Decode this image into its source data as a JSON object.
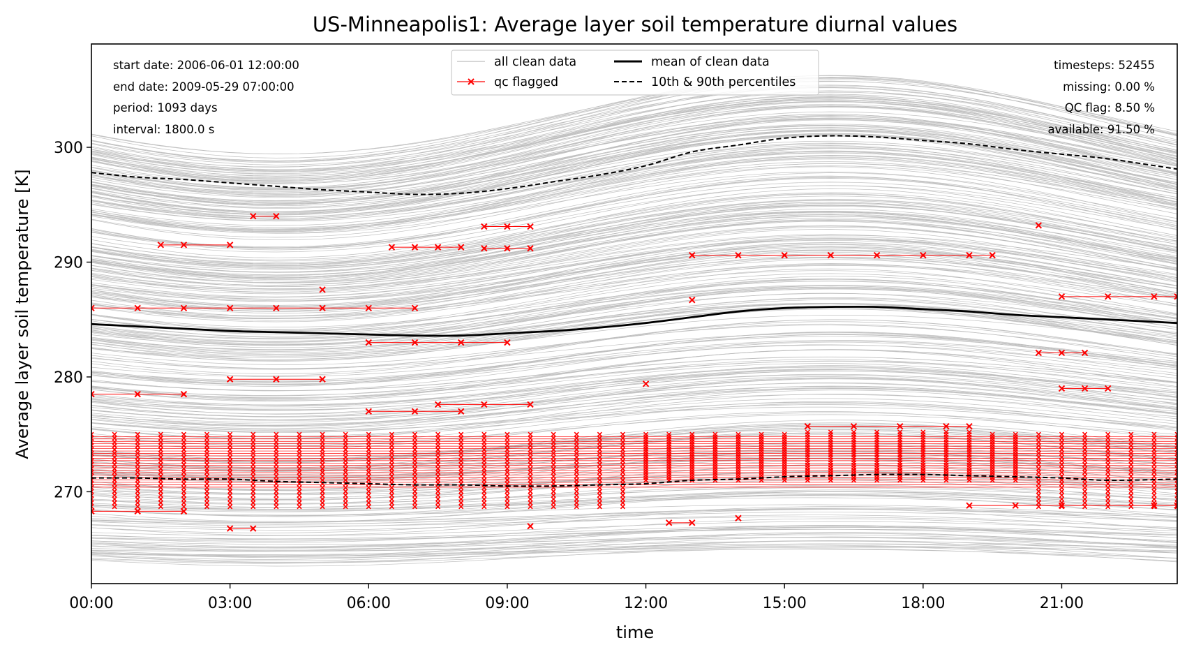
{
  "chart_data": {
    "type": "line",
    "title": "US-Minneapolis1: Average layer soil temperature diurnal values",
    "xlabel": "time",
    "ylabel": "Average layer soil temperature [K]",
    "xlim_hours": [
      0,
      23.5
    ],
    "ylim": [
      262,
      309
    ],
    "x_ticks": [
      "00:00",
      "03:00",
      "06:00",
      "09:00",
      "12:00",
      "15:00",
      "18:00",
      "21:00"
    ],
    "y_ticks": [
      270,
      280,
      290,
      300
    ],
    "grid": false,
    "legend_position": "upper center",
    "legend": [
      {
        "label": "all clean data",
        "style": "thin-grey-line"
      },
      {
        "label": "qc flagged",
        "style": "red-x-line"
      },
      {
        "label": "mean of clean data",
        "style": "thick-black-line"
      },
      {
        "label": "10th & 90th percentiles",
        "style": "dashed-black-line"
      }
    ],
    "stats_left": [
      "start date: 2006-06-01 12:00:00",
      "end date: 2009-05-29 07:00:00",
      "period: 1093 days",
      "interval: 1800.0 s"
    ],
    "stats_right": [
      "timesteps: 52455",
      "missing: 0.00 %",
      "QC flag: 8.50 %",
      "available: 91.50 %"
    ],
    "x_hours": [
      0,
      1,
      2,
      3,
      4,
      5,
      6,
      7,
      8,
      9,
      10,
      11,
      12,
      13,
      14,
      15,
      16,
      17,
      18,
      19,
      20,
      21,
      22,
      23.5
    ],
    "series": [
      {
        "name": "mean of clean data",
        "values": [
          284.6,
          284.4,
          284.2,
          284.0,
          283.9,
          283.8,
          283.7,
          283.6,
          283.6,
          283.8,
          284.0,
          284.3,
          284.7,
          285.2,
          285.7,
          286.0,
          286.1,
          286.1,
          285.9,
          285.7,
          285.4,
          285.2,
          285.0,
          284.7
        ]
      },
      {
        "name": "10th & 90th percentiles",
        "values": [
          297.8,
          297.4,
          297.2,
          296.9,
          296.6,
          296.3,
          296.1,
          295.9,
          296.0,
          296.4,
          297.0,
          297.6,
          298.4,
          299.6,
          300.2,
          300.8,
          301.0,
          300.9,
          300.6,
          300.3,
          299.8,
          299.4,
          299.0,
          298.1
        ]
      },
      {
        "name": "10th & 90th percentiles",
        "values": [
          271.2,
          271.2,
          271.1,
          271.1,
          270.9,
          270.8,
          270.7,
          270.6,
          270.6,
          270.5,
          270.5,
          270.6,
          270.7,
          271.0,
          271.1,
          271.3,
          271.4,
          271.5,
          271.5,
          271.4,
          271.3,
          271.2,
          271.0,
          271.1
        ]
      }
    ],
    "qc_flagged_points": [
      {
        "x": 0,
        "y": 286.0
      },
      {
        "x": 1,
        "y": 286.0
      },
      {
        "x": 2,
        "y": 286.0
      },
      {
        "x": 3,
        "y": 286.0
      },
      {
        "x": 4,
        "y": 286.0
      },
      {
        "x": 5,
        "y": 286.0
      },
      {
        "x": 6,
        "y": 286.0
      },
      {
        "x": 7,
        "y": 286.0
      },
      {
        "x": 1.5,
        "y": 291.5
      },
      {
        "x": 2,
        "y": 291.5
      },
      {
        "x": 3,
        "y": 291.5
      },
      {
        "x": 3.5,
        "y": 294.0
      },
      {
        "x": 4,
        "y": 294.0
      },
      {
        "x": 6.5,
        "y": 291.3
      },
      {
        "x": 7,
        "y": 291.3
      },
      {
        "x": 7.5,
        "y": 291.3
      },
      {
        "x": 8,
        "y": 291.3
      },
      {
        "x": 8.5,
        "y": 293.1
      },
      {
        "x": 9,
        "y": 293.1
      },
      {
        "x": 9.5,
        "y": 293.1
      },
      {
        "x": 8.5,
        "y": 291.2
      },
      {
        "x": 9,
        "y": 291.2
      },
      {
        "x": 9.5,
        "y": 291.2
      },
      {
        "x": 5,
        "y": 287.6
      },
      {
        "x": 6,
        "y": 283.0
      },
      {
        "x": 7,
        "y": 283.0
      },
      {
        "x": 8,
        "y": 283.0
      },
      {
        "x": 9,
        "y": 283.0
      },
      {
        "x": 13,
        "y": 290.6
      },
      {
        "x": 14,
        "y": 290.6
      },
      {
        "x": 15,
        "y": 290.6
      },
      {
        "x": 16,
        "y": 290.6
      },
      {
        "x": 17,
        "y": 290.6
      },
      {
        "x": 18,
        "y": 290.6
      },
      {
        "x": 19,
        "y": 290.6
      },
      {
        "x": 19.5,
        "y": 290.6
      },
      {
        "x": 13,
        "y": 286.7
      },
      {
        "x": 20.5,
        "y": 293.2
      },
      {
        "x": 21,
        "y": 287.0
      },
      {
        "x": 22,
        "y": 287.0
      },
      {
        "x": 23,
        "y": 287.0
      },
      {
        "x": 23.5,
        "y": 287.0
      },
      {
        "x": 20.5,
        "y": 282.1
      },
      {
        "x": 21,
        "y": 282.1
      },
      {
        "x": 21.5,
        "y": 282.1
      },
      {
        "x": 21,
        "y": 279.0
      },
      {
        "x": 21.5,
        "y": 279.0
      },
      {
        "x": 22,
        "y": 279.0
      },
      {
        "x": 12,
        "y": 279.4
      },
      {
        "x": 0,
        "y": 278.5
      },
      {
        "x": 1,
        "y": 278.5
      },
      {
        "x": 2,
        "y": 278.5
      },
      {
        "x": 3,
        "y": 279.8
      },
      {
        "x": 4,
        "y": 279.8
      },
      {
        "x": 5,
        "y": 279.8
      },
      {
        "x": 7.5,
        "y": 277.6
      },
      {
        "x": 8.5,
        "y": 277.6
      },
      {
        "x": 9.5,
        "y": 277.6
      },
      {
        "x": 6,
        "y": 277.0
      },
      {
        "x": 7,
        "y": 277.0
      },
      {
        "x": 8,
        "y": 277.0
      },
      {
        "x": 15.5,
        "y": 275.7
      },
      {
        "x": 16.5,
        "y": 275.7
      },
      {
        "x": 17.5,
        "y": 275.7
      },
      {
        "x": 18.5,
        "y": 275.7
      },
      {
        "x": 19,
        "y": 275.7
      },
      {
        "x": 3,
        "y": 266.8
      },
      {
        "x": 3.5,
        "y": 266.8
      },
      {
        "x": 12.5,
        "y": 267.3
      },
      {
        "x": 13,
        "y": 267.3
      },
      {
        "x": 14,
        "y": 267.7
      },
      {
        "x": 9.5,
        "y": 267.0
      },
      {
        "x": 19,
        "y": 268.8
      },
      {
        "x": 20,
        "y": 268.8
      },
      {
        "x": 21,
        "y": 268.8
      },
      {
        "x": 23,
        "y": 268.8
      },
      {
        "x": 23.5,
        "y": 268.8
      },
      {
        "x": 0,
        "y": 268.3
      },
      {
        "x": 1,
        "y": 268.3
      },
      {
        "x": 2,
        "y": 268.3
      }
    ]
  }
}
